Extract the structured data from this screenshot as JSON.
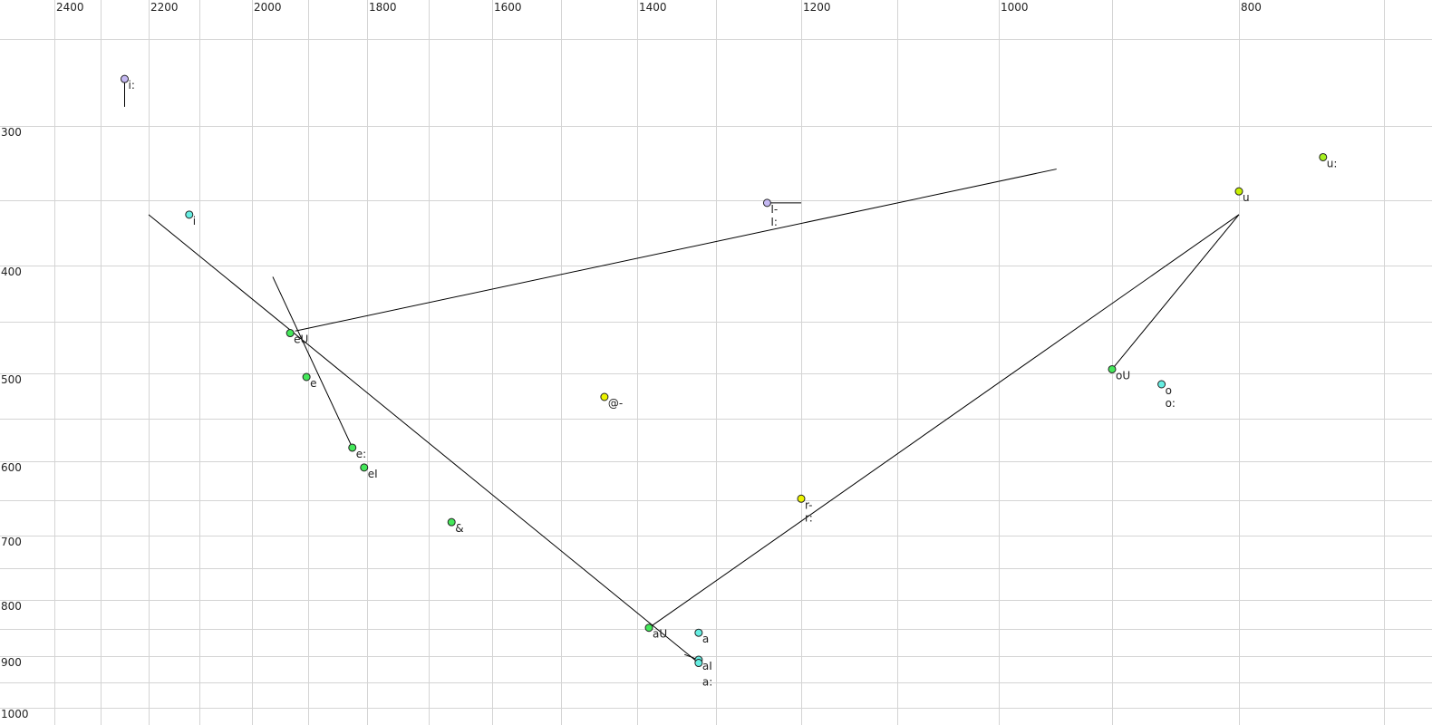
{
  "chart_data": {
    "type": "scatter",
    "title": "",
    "xlabel": "",
    "ylabel": "",
    "x_axis": {
      "quantity": "F2",
      "reversed": true,
      "ticks": [
        2400,
        2200,
        2000,
        1800,
        1600,
        1400,
        1200,
        1000,
        800
      ],
      "grid_step": 100,
      "range": [
        2450,
        650
      ]
    },
    "y_axis": {
      "quantity": "F1",
      "reversed": false,
      "ticks": [
        300,
        400,
        500,
        600,
        700,
        800,
        900,
        1000
      ],
      "grid_step": 50,
      "range": [
        220,
        1010
      ]
    },
    "grid": true,
    "colors": {
      "lilac": "#c4b8f2",
      "cyan": "#66eee2",
      "lime": "#c8f000",
      "yellowgreen": "#a6f020",
      "green": "#44e85a",
      "yellow": "#ecf400",
      "label_gray": "#777777"
    },
    "points": [
      {
        "labels": [
          "i:"
        ],
        "f2": 2250,
        "f1": 273,
        "color": "#c4b8f2"
      },
      {
        "labels": [
          "i"
        ],
        "f2": 2120,
        "f1": 361,
        "color": "#66eee2"
      },
      {
        "labels": [
          "I-",
          "I:"
        ],
        "f2": 1240,
        "f1": 352,
        "color": "#c4b8f2"
      },
      {
        "labels": [
          "u"
        ],
        "f2": 800,
        "f1": 344,
        "color": "#c8f000"
      },
      {
        "labels": [
          "u:"
        ],
        "f2": 742,
        "f1": 321,
        "color": "#a6f020"
      },
      {
        "labels": [
          "eU"
        ],
        "f2": 1932,
        "f1": 461,
        "color": "#44e85a"
      },
      {
        "labels": [
          "e"
        ],
        "f2": 1903,
        "f1": 504,
        "color": "#44e85a"
      },
      {
        "labels": [
          "e:"
        ],
        "f2": 1825,
        "f1": 584,
        "color": "#44e85a"
      },
      {
        "labels": [
          "eI"
        ],
        "f2": 1805,
        "f1": 608,
        "color": "#44e85a"
      },
      {
        "labels": [
          "&"
        ],
        "f2": 1664,
        "f1": 681,
        "color": "#44e85a"
      },
      {
        "labels": [
          "@-"
        ],
        "f2": 1443,
        "f1": 526,
        "color": "#ecf400"
      },
      {
        "labels": [
          "r-",
          "r:"
        ],
        "f2": 1200,
        "f1": 648,
        "color": "#ecf400"
      },
      {
        "labels": [
          "aU"
        ],
        "f2": 1385,
        "f1": 848,
        "color": "#44e85a"
      },
      {
        "labels": [
          "a"
        ],
        "f2": 1322,
        "f1": 857,
        "color": "#66eee2",
        "label_color": "#777777"
      },
      {
        "labels": [
          "aI"
        ],
        "f2": 1322,
        "f1": 907,
        "color": "#66eee2"
      },
      {
        "labels": [
          "a:"
        ],
        "f2": 1322,
        "f1": 913,
        "color": "#66eee2"
      },
      {
        "labels": [
          "oU"
        ],
        "f2": 900,
        "f1": 496,
        "color": "#44e85a"
      },
      {
        "labels": [
          "o",
          "o:"
        ],
        "f2": 861,
        "f1": 512,
        "color": "#66eee2"
      }
    ],
    "trajectories": [
      {
        "from": [
          2250,
          273
        ],
        "to": [
          2250,
          289
        ]
      },
      {
        "from": [
          1240,
          352
        ],
        "to": [
          1200,
          352
        ]
      },
      {
        "from": [
          1322,
          913
        ],
        "to": [
          2200,
          361
        ]
      },
      {
        "from": [
          1825,
          584
        ],
        "to": [
          1963,
          410
        ]
      },
      {
        "from": [
          1923,
          459
        ],
        "to": [
          949,
          329
        ]
      },
      {
        "from": [
          1385,
          848
        ],
        "to": [
          800,
          361
        ]
      },
      {
        "from": [
          900,
          496
        ],
        "to": [
          800,
          361
        ]
      },
      {
        "from": [
          1340,
          897
        ],
        "to": [
          1322,
          907
        ]
      }
    ]
  }
}
